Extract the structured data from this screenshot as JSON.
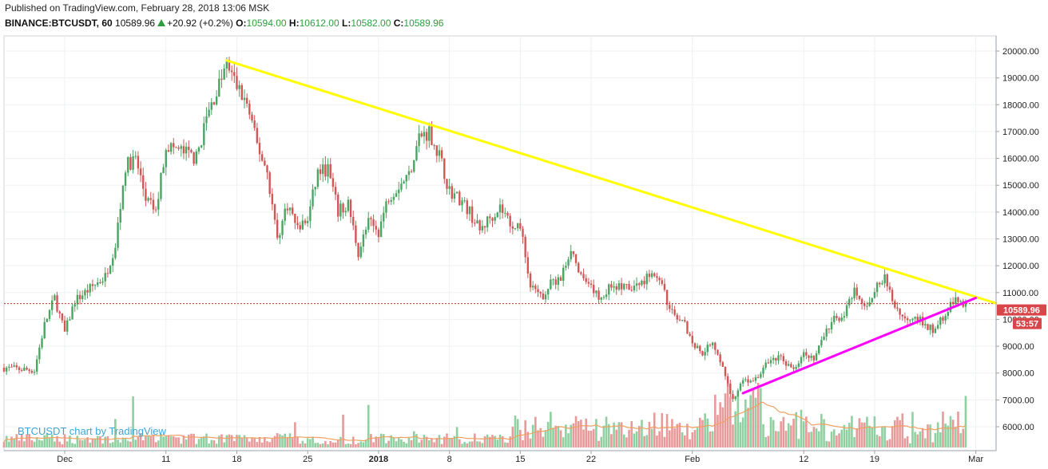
{
  "header": {
    "published": "Published on TradingView.com, February 28, 2018 13:06 MSK",
    "symbol": "BINANCE:BTCUSDT, 60",
    "last": "10589.96",
    "change": "+20.92 (+0.2%)",
    "open_label": "O:",
    "open": "10594.00",
    "high_label": "H:",
    "high": "10612.00",
    "low_label": "L:",
    "low": "10582.00",
    "close_label": "C:",
    "close": "10589.96"
  },
  "watermark": "BTCUSDT chart by TradingView",
  "price_tag": "10589.96",
  "countdown_tag": "53:57",
  "colors": {
    "up": "#4aa563",
    "down": "#d25656",
    "trendline_resistance": "#ffff00",
    "trendline_support": "#ff00ff",
    "price_line": "#d02c2c",
    "grid": "#eef0f3",
    "volume_up": "#8fd0a0",
    "volume_down": "#e89a9a",
    "volume_ma": "#f0a060"
  },
  "chart_data": {
    "type": "candlestick",
    "symbol": "BINANCE:BTCUSDT",
    "interval": "60",
    "y_axis": {
      "ticks": [
        20000,
        19000,
        18000,
        17000,
        16000,
        15000,
        14000,
        13000,
        12000,
        11000,
        10000,
        9000,
        8000,
        7000,
        6000
      ],
      "tick_labels": [
        "20000.00",
        "19000.00",
        "18000.00",
        "17000.00",
        "16000.00",
        "15000.00",
        "14000.00",
        "13000.00",
        "12000.00",
        "11000.00",
        "10000.00",
        "9000.00",
        "8000.00",
        "7000.00",
        "6000.00"
      ],
      "range": [
        5500,
        20500
      ]
    },
    "x_axis": {
      "tick_labels": [
        "Dec",
        "11",
        "18",
        "25",
        "2018",
        "8",
        "15",
        "22",
        "Feb",
        "12",
        "19",
        "Mar"
      ],
      "tick_dates": [
        "2017-12-01",
        "2017-12-11",
        "2017-12-18",
        "2017-12-25",
        "2018-01-01",
        "2018-01-08",
        "2018-01-15",
        "2018-01-22",
        "2018-02-01",
        "2018-02-12",
        "2018-02-19",
        "2018-03-01"
      ],
      "range": [
        "2017-11-25",
        "2018-03-03"
      ]
    },
    "price_path": [
      [
        "2017-11-25",
        8200
      ],
      [
        "2017-11-28",
        8100
      ],
      [
        "2017-11-29",
        9800
      ],
      [
        "2017-11-30",
        10800
      ],
      [
        "2017-12-01",
        9500
      ],
      [
        "2017-12-02",
        10700
      ],
      [
        "2017-12-05",
        11600
      ],
      [
        "2017-12-06",
        12800
      ],
      [
        "2017-12-07",
        15700
      ],
      [
        "2017-12-08",
        16000
      ],
      [
        "2017-12-09",
        14500
      ],
      [
        "2017-12-10",
        14000
      ],
      [
        "2017-12-11",
        16500
      ],
      [
        "2017-12-13",
        16200
      ],
      [
        "2017-12-14",
        16000
      ],
      [
        "2017-12-15",
        17500
      ],
      [
        "2017-12-17",
        19500
      ],
      [
        "2017-12-18",
        18700
      ],
      [
        "2017-12-19",
        18000
      ],
      [
        "2017-12-20",
        16500
      ],
      [
        "2017-12-21",
        15500
      ],
      [
        "2017-12-22",
        13000
      ],
      [
        "2017-12-23",
        14300
      ],
      [
        "2017-12-24",
        13400
      ],
      [
        "2017-12-25",
        13700
      ],
      [
        "2017-12-26",
        15500
      ],
      [
        "2017-12-27",
        15600
      ],
      [
        "2017-12-28",
        14000
      ],
      [
        "2017-12-29",
        14300
      ],
      [
        "2017-12-30",
        12500
      ],
      [
        "2017-12-31",
        13600
      ],
      [
        "2018-01-01",
        13300
      ],
      [
        "2018-01-02",
        14600
      ],
      [
        "2018-01-03",
        15000
      ],
      [
        "2018-01-04",
        15400
      ],
      [
        "2018-01-05",
        16800
      ],
      [
        "2018-01-06",
        17000
      ],
      [
        "2018-01-07",
        16100
      ],
      [
        "2018-01-08",
        14800
      ],
      [
        "2018-01-09",
        14500
      ],
      [
        "2018-01-10",
        14000
      ],
      [
        "2018-01-11",
        13300
      ],
      [
        "2018-01-12",
        13800
      ],
      [
        "2018-01-13",
        14200
      ],
      [
        "2018-01-14",
        13600
      ],
      [
        "2018-01-15",
        13500
      ],
      [
        "2018-01-16",
        11200
      ],
      [
        "2018-01-17",
        10800
      ],
      [
        "2018-01-18",
        11300
      ],
      [
        "2018-01-19",
        11500
      ],
      [
        "2018-01-20",
        12700
      ],
      [
        "2018-01-21",
        11500
      ],
      [
        "2018-01-22",
        11100
      ],
      [
        "2018-01-23",
        10800
      ],
      [
        "2018-01-24",
        11300
      ],
      [
        "2018-01-25",
        11200
      ],
      [
        "2018-01-26",
        11100
      ],
      [
        "2018-01-27",
        11400
      ],
      [
        "2018-01-28",
        11800
      ],
      [
        "2018-01-29",
        11200
      ],
      [
        "2018-01-30",
        10200
      ],
      [
        "2018-01-31",
        10100
      ],
      [
        "2018-02-01",
        9100
      ],
      [
        "2018-02-02",
        8800
      ],
      [
        "2018-02-03",
        9200
      ],
      [
        "2018-02-04",
        8200
      ],
      [
        "2018-02-05",
        7000
      ],
      [
        "2018-02-06",
        7700
      ],
      [
        "2018-02-07",
        7600
      ],
      [
        "2018-02-08",
        8200
      ],
      [
        "2018-02-09",
        8600
      ],
      [
        "2018-02-10",
        8500
      ],
      [
        "2018-02-11",
        8100
      ],
      [
        "2018-02-12",
        8900
      ],
      [
        "2018-02-13",
        8500
      ],
      [
        "2018-02-14",
        9400
      ],
      [
        "2018-02-15",
        10000
      ],
      [
        "2018-02-16",
        10200
      ],
      [
        "2018-02-17",
        11000
      ],
      [
        "2018-02-18",
        10400
      ],
      [
        "2018-02-19",
        11100
      ],
      [
        "2018-02-20",
        11500
      ],
      [
        "2018-02-21",
        10500
      ],
      [
        "2018-02-22",
        10000
      ],
      [
        "2018-02-23",
        10200
      ],
      [
        "2018-02-24",
        9700
      ],
      [
        "2018-02-25",
        9600
      ],
      [
        "2018-02-26",
        10300
      ],
      [
        "2018-02-27",
        10700
      ],
      [
        "2018-02-28",
        10590
      ]
    ],
    "last_price": 10589.96,
    "trendlines": [
      {
        "name": "resistance",
        "color": "#ffff00",
        "points": [
          [
            "2017-12-17",
            19650
          ],
          [
            "2018-03-03",
            10600
          ]
        ]
      },
      {
        "name": "support",
        "color": "#ff00ff",
        "points": [
          [
            "2018-02-06",
            7250
          ],
          [
            "2018-03-01",
            10800
          ]
        ]
      }
    ],
    "grid": true
  }
}
